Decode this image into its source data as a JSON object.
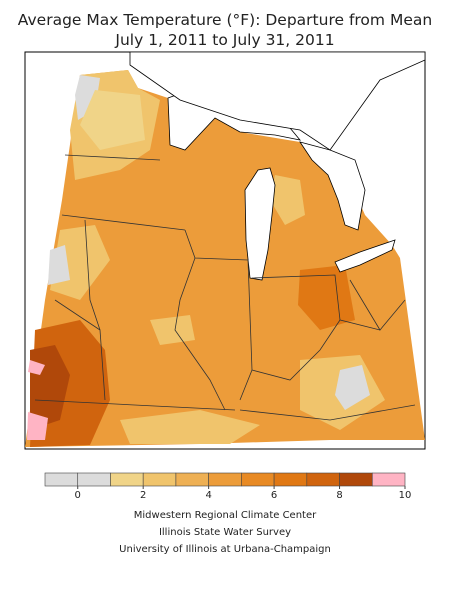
{
  "header": {
    "title": "Average Max Temperature (°F): Departure from Mean",
    "subtitle": "July 1, 2011 to July 31, 2011"
  },
  "colorbar": {
    "bounds": [
      -1,
      0,
      1,
      2,
      3,
      4,
      5,
      6,
      7,
      8,
      9,
      10
    ],
    "colors": [
      "#dcdcdc",
      "#dcdcdc",
      "#f0d488",
      "#f0c46c",
      "#eeb054",
      "#ec9c3a",
      "#e88a24",
      "#e07814",
      "#d0640e",
      "#b0480a",
      "#ffb4c4"
    ],
    "ticks": [
      0,
      2,
      4,
      6,
      8,
      10
    ]
  },
  "credits": [
    "Midwestern Regional Climate Center",
    "Illinois State Water Survey",
    "University of Illinois at Urbana-Champaign"
  ]
}
